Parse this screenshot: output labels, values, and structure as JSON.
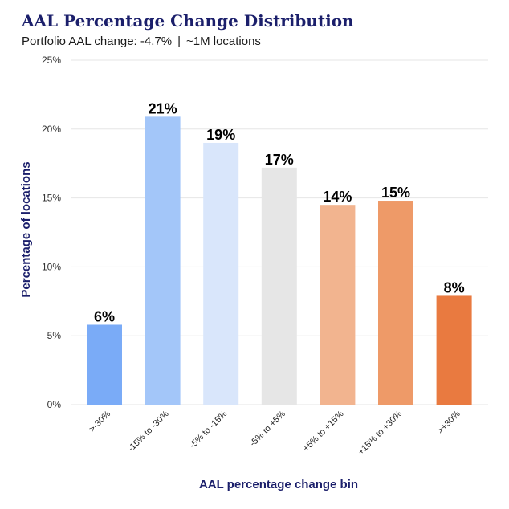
{
  "header": {
    "title": "AAL Percentage Change Distribution",
    "subtitle_part1": "Portfolio AAL change: -4.7%",
    "subtitle_sep": "|",
    "subtitle_part2": "~1M locations"
  },
  "chart_data": {
    "type": "bar",
    "categories": [
      ">-30%",
      "-15% to -30%",
      "-5% to -15%",
      "-5% to +5%",
      "+5% to +15%",
      "+15% to +30%",
      ">+30%"
    ],
    "values": [
      5.8,
      20.9,
      19.0,
      17.2,
      14.5,
      14.8,
      7.9
    ],
    "data_labels": [
      "6%",
      "21%",
      "19%",
      "17%",
      "14%",
      "15%",
      "8%"
    ],
    "colors": [
      "#7aabf7",
      "#a3c6f9",
      "#d9e6fb",
      "#e6e6e6",
      "#f2b48f",
      "#ee9a68",
      "#e97a40"
    ],
    "xlabel": "AAL percentage change bin",
    "ylabel": "Percentage of locations",
    "ylim": [
      0,
      25
    ],
    "yticks": [
      0,
      5,
      10,
      15,
      20,
      25
    ],
    "ytick_labels": [
      "0%",
      "5%",
      "10%",
      "15%",
      "20%",
      "25%"
    ],
    "grid": true,
    "legend": "none"
  }
}
